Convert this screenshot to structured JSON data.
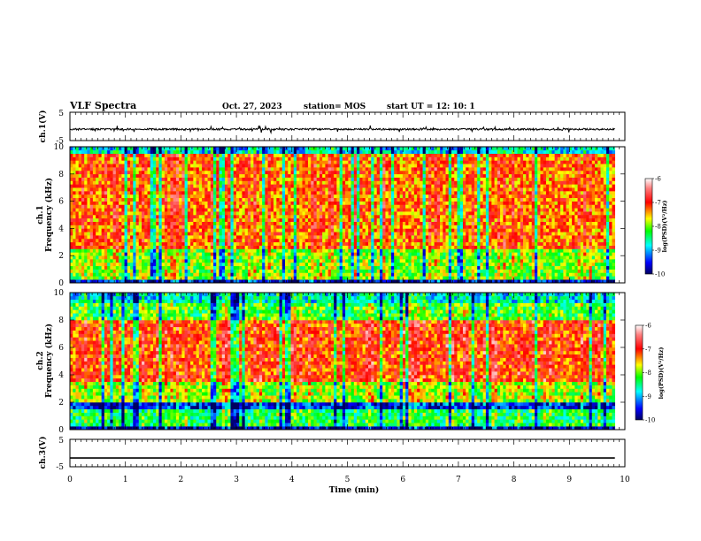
{
  "header": {
    "title": "VLF Spectra",
    "date": "Oct. 27, 2023",
    "station": "station= MOS",
    "start": "start  UT =   12: 10: 1"
  },
  "chart_data": [
    {
      "type": "line",
      "name": "ch1-waveform",
      "ylabel": "ch.1(V)",
      "ylim": [
        -5,
        5
      ],
      "yticks": [
        "5",
        "-5"
      ],
      "xlim": [
        0,
        10
      ],
      "baseline": -1,
      "noise_amplitude": 0.3
    },
    {
      "type": "heatmap",
      "name": "ch1-spectrogram",
      "ylabel": "ch.1\nFrequency (kHz)",
      "xlim": [
        0,
        10
      ],
      "ylim": [
        0,
        10
      ],
      "data_xmax": 9.82,
      "yticks": [
        "0",
        "2",
        "4",
        "6",
        "8",
        "10"
      ],
      "colorbar": {
        "label": "log(PSD)(V²/Hz)",
        "range": [
          -10,
          -6
        ],
        "ticks": [
          "-6",
          "-7",
          "-8",
          "-9",
          "-10"
        ]
      }
    },
    {
      "type": "heatmap",
      "name": "ch2-spectrogram",
      "ylabel": "ch.2\nFrequency (kHz)",
      "xlim": [
        0,
        10
      ],
      "ylim": [
        0,
        10
      ],
      "data_xmax": 9.82,
      "yticks": [
        "0",
        "2",
        "4",
        "6",
        "8",
        "10"
      ],
      "colorbar": {
        "label": "log(PSD)(V²/Hz)",
        "range": [
          -10,
          -6
        ],
        "ticks": [
          "-6",
          "-7",
          "-8",
          "-9",
          "-10"
        ]
      }
    },
    {
      "type": "line",
      "name": "ch3-waveform",
      "ylabel": "ch.3(V)",
      "ylim": [
        -5,
        5
      ],
      "yticks": [
        "5",
        "-5"
      ],
      "xlim": [
        0,
        10
      ],
      "baseline": -1.8,
      "noise_amplitude": 0
    }
  ],
  "x_axis": {
    "label": "Time (min)",
    "ticks": [
      "0",
      "1",
      "2",
      "3",
      "4",
      "5",
      "6",
      "7",
      "8",
      "9",
      "10"
    ]
  },
  "colors": {
    "colormap": [
      "#000060",
      "#0000ff",
      "#00ffff",
      "#00ff00",
      "#ffff00",
      "#ff0000",
      "#ffffff"
    ]
  }
}
